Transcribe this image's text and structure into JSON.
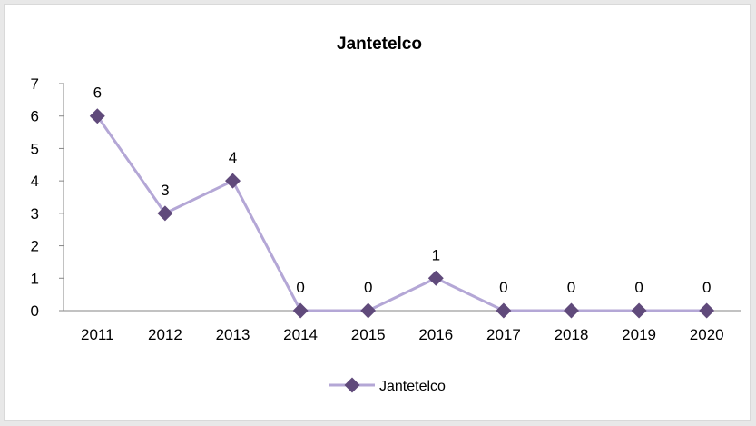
{
  "chart_data": {
    "type": "line",
    "title": "Jantetelco",
    "xlabel": "",
    "ylabel": "",
    "categories": [
      "2011",
      "2012",
      "2013",
      "2014",
      "2015",
      "2016",
      "2017",
      "2018",
      "2019",
      "2020"
    ],
    "series": [
      {
        "name": "Jantetelco",
        "values": [
          6,
          3,
          4,
          0,
          0,
          1,
          0,
          0,
          0,
          0
        ],
        "color": "#b4a7d6",
        "marker_color": "#604a7b"
      }
    ],
    "ylim": [
      0,
      7
    ],
    "yticks": [
      "0",
      "1",
      "2",
      "3",
      "4",
      "5",
      "6",
      "7"
    ],
    "data_labels": true,
    "grid": false,
    "legend_position": "bottom"
  }
}
